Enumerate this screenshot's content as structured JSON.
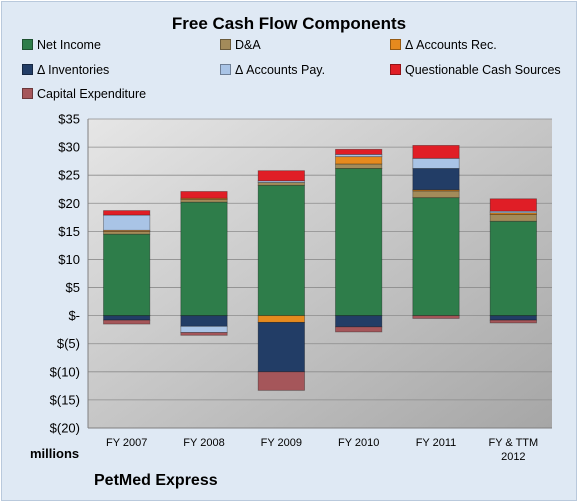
{
  "chart_data": {
    "type": "bar",
    "stacked": true,
    "title": "Free Cash Flow Components",
    "units_label": "millions",
    "company": "PetMed Express",
    "categories": [
      [
        "FY 2007"
      ],
      [
        "FY 2008"
      ],
      [
        "FY 2009"
      ],
      [
        "FY 2010"
      ],
      [
        "FY 2011"
      ],
      [
        "FY & TTM",
        "2012"
      ]
    ],
    "y_ticks": [
      "$35",
      "$30",
      "$25",
      "$20",
      "$15",
      "$10",
      "$5",
      "$-",
      "$(5)",
      "$(10)",
      "$(15)",
      "$(20)"
    ],
    "ylim": [
      -20,
      35
    ],
    "grid": true,
    "legend_position": "top",
    "series": [
      {
        "name": "Net Income",
        "color": "#2e7d4a",
        "values": [
          14.5,
          20.2,
          23.2,
          26.2,
          21.0,
          16.8
        ]
      },
      {
        "name": "D&A",
        "color": "#a38b5a",
        "values": [
          0.5,
          0.5,
          0.5,
          0.8,
          1.2,
          1.2
        ]
      },
      {
        "name": "Δ Accounts Rec.",
        "color": "#e68a1e",
        "values": [
          0.2,
          0.2,
          -1.2,
          1.3,
          0.2,
          0.3
        ]
      },
      {
        "name": "Δ Inventories",
        "color": "#223d66",
        "values": [
          -0.8,
          -1.9,
          -8.8,
          -2.0,
          3.8,
          -0.8
        ]
      },
      {
        "name": "Δ Accounts Pay.",
        "color": "#a9c4e6",
        "values": [
          2.7,
          -1.1,
          0.3,
          0.4,
          1.8,
          0.3
        ]
      },
      {
        "name": "Questionable Cash Sources",
        "color": "#e01e26",
        "values": [
          0.8,
          1.2,
          1.8,
          0.9,
          2.3,
          2.2
        ]
      },
      {
        "name": "Capital Expenditure",
        "color": "#a5565a",
        "values": [
          -0.7,
          -0.5,
          -3.3,
          -0.9,
          -0.5,
          -0.5
        ]
      }
    ]
  }
}
